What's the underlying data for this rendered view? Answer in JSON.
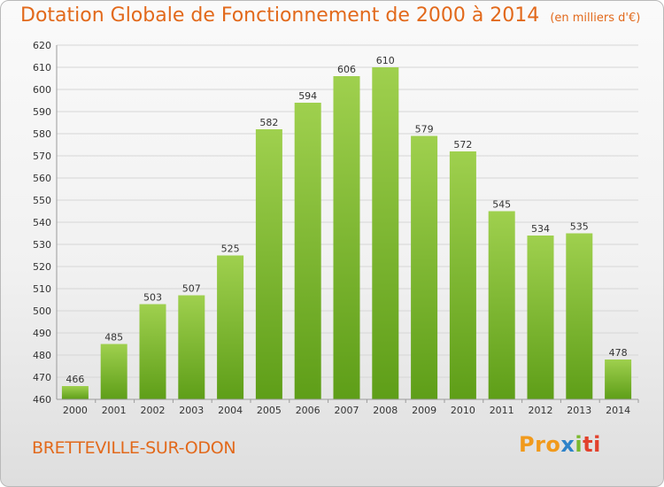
{
  "title": "Dotation Globale de Fonctionnement de 2000 à 2014",
  "subtitle": "(en milliers d'€)",
  "commune": "BRETTEVILLE-SUR-ODON",
  "logo": {
    "text": "Proxiti",
    "parts": [
      "Pro",
      "x",
      "i",
      "ti"
    ]
  },
  "colors": {
    "title": "#e2691b",
    "bar_top": "#9fd04e",
    "bar_bottom": "#5e9e18",
    "grid": "#d6d6d6"
  },
  "chart_data": {
    "type": "bar",
    "categories": [
      "2000",
      "2001",
      "2002",
      "2003",
      "2004",
      "2005",
      "2006",
      "2007",
      "2008",
      "2009",
      "2010",
      "2011",
      "2012",
      "2013",
      "2014"
    ],
    "values": [
      466,
      485,
      503,
      507,
      525,
      582,
      594,
      606,
      610,
      579,
      572,
      545,
      534,
      535,
      478
    ],
    "ylim": [
      460,
      620
    ],
    "yticks": [
      460,
      470,
      480,
      490,
      500,
      510,
      520,
      530,
      540,
      550,
      560,
      570,
      580,
      590,
      600,
      610,
      620
    ],
    "grid": true,
    "xlabel": "",
    "ylabel": ""
  }
}
